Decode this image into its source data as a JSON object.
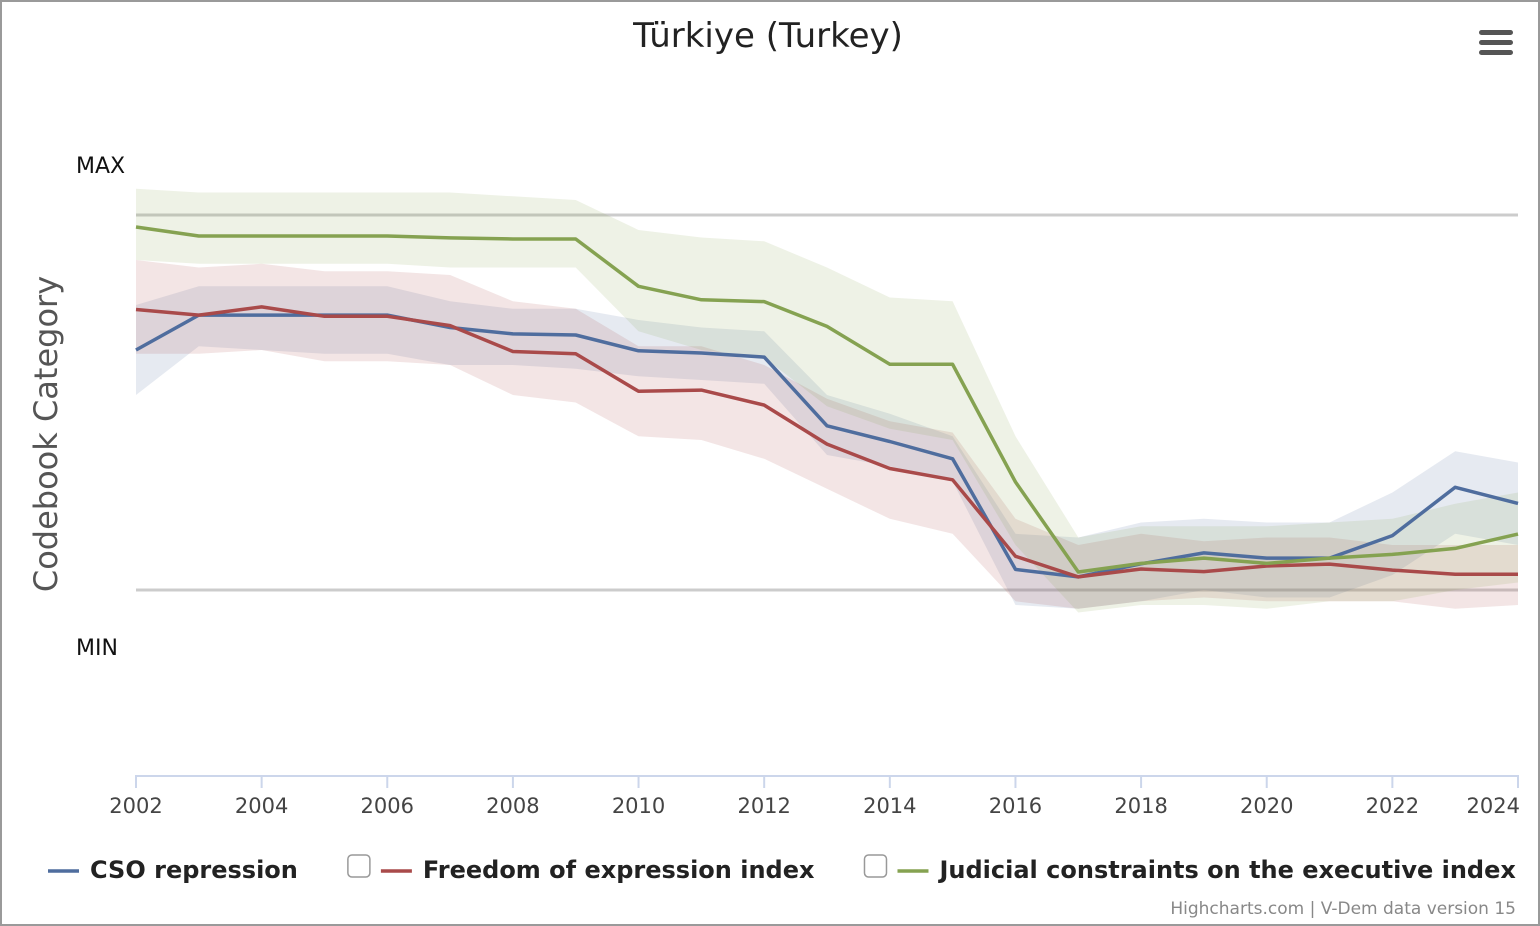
{
  "chart_data": {
    "type": "line",
    "title": "Türkiye (Turkey)",
    "ylabel": "Codebook Category",
    "y_max_label": "MAX",
    "y_min_label": "MIN",
    "xlim": [
      2002,
      2024
    ],
    "ylim": [
      0,
      1
    ],
    "x_ticks": [
      "2002",
      "2004",
      "2006",
      "2008",
      "2010",
      "2012",
      "2014",
      "2016",
      "2018",
      "2020",
      "2022",
      "2024"
    ],
    "legend_position": "bottom",
    "x": [
      2002,
      2003,
      2004,
      2005,
      2006,
      2007,
      2008,
      2009,
      2010,
      2011,
      2012,
      2013,
      2014,
      2015,
      2016,
      2017,
      2018,
      2019,
      2020,
      2021,
      2022,
      2023,
      2024
    ],
    "series": [
      {
        "name": "CSO repression",
        "color": "#4f6d9e",
        "values": [
          0.64,
          0.733,
          0.733,
          0.733,
          0.733,
          0.7,
          0.683,
          0.68,
          0.638,
          0.632,
          0.621,
          0.438,
          0.396,
          0.35,
          0.055,
          0.035,
          0.07,
          0.099,
          0.085,
          0.085,
          0.145,
          0.274,
          0.231
        ],
        "lower": [
          0.52,
          0.65,
          0.64,
          0.63,
          0.63,
          0.6,
          0.6,
          0.59,
          0.57,
          0.56,
          0.55,
          0.36,
          0.33,
          0.29,
          -0.04,
          -0.05,
          -0.03,
          0.0,
          -0.02,
          -0.02,
          0.04,
          0.15,
          0.12
        ],
        "upper": [
          0.76,
          0.81,
          0.81,
          0.81,
          0.81,
          0.77,
          0.75,
          0.75,
          0.72,
          0.7,
          0.69,
          0.52,
          0.47,
          0.41,
          0.15,
          0.14,
          0.18,
          0.19,
          0.18,
          0.18,
          0.26,
          0.37,
          0.34
        ]
      },
      {
        "name": "Freedom of expression index",
        "color": "#a94a4a",
        "values": [
          0.748,
          0.733,
          0.755,
          0.73,
          0.73,
          0.705,
          0.636,
          0.63,
          0.53,
          0.533,
          0.493,
          0.389,
          0.324,
          0.294,
          0.09,
          0.035,
          0.056,
          0.049,
          0.064,
          0.069,
          0.053,
          0.042,
          0.042
        ],
        "lower": [
          0.63,
          0.63,
          0.64,
          0.61,
          0.61,
          0.6,
          0.52,
          0.5,
          0.41,
          0.4,
          0.35,
          0.27,
          0.19,
          0.15,
          -0.03,
          -0.05,
          -0.03,
          -0.02,
          -0.03,
          -0.03,
          -0.03,
          -0.05,
          -0.04
        ],
        "upper": [
          0.88,
          0.86,
          0.87,
          0.85,
          0.85,
          0.84,
          0.77,
          0.75,
          0.65,
          0.65,
          0.6,
          0.51,
          0.45,
          0.42,
          0.19,
          0.12,
          0.15,
          0.13,
          0.14,
          0.14,
          0.12,
          0.12,
          0.12
        ]
      },
      {
        "name": "Judicial constraints on the executive index",
        "color": "#85a251",
        "values": [
          0.968,
          0.944,
          0.944,
          0.944,
          0.944,
          0.939,
          0.936,
          0.936,
          0.81,
          0.774,
          0.769,
          0.703,
          0.602,
          0.602,
          0.288,
          0.048,
          0.071,
          0.085,
          0.071,
          0.085,
          0.095,
          0.111,
          0.149
        ],
        "lower": [
          0.88,
          0.87,
          0.87,
          0.87,
          0.87,
          0.86,
          0.86,
          0.86,
          0.69,
          0.64,
          0.62,
          0.49,
          0.43,
          0.4,
          0.12,
          -0.06,
          -0.04,
          -0.04,
          -0.05,
          -0.03,
          -0.03,
          0.0,
          0.02
        ],
        "upper": [
          1.07,
          1.06,
          1.06,
          1.06,
          1.06,
          1.06,
          1.05,
          1.04,
          0.96,
          0.94,
          0.93,
          0.86,
          0.78,
          0.77,
          0.41,
          0.14,
          0.17,
          0.17,
          0.17,
          0.18,
          0.19,
          0.23,
          0.26
        ]
      }
    ]
  },
  "credits": "Highcharts.com | V-Dem data version 15"
}
